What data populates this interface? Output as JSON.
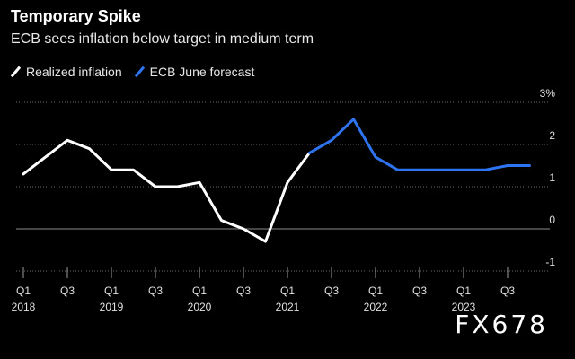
{
  "title": "Temporary Spike",
  "subtitle": "ECB sees inflation below target in medium term",
  "watermark": "FX678",
  "legend": [
    {
      "label": "Realized inflation",
      "color": "#ffffff"
    },
    {
      "label": "ECB June forecast",
      "color": "#2e74f0"
    }
  ],
  "chart_data": {
    "type": "line",
    "title": "Temporary Spike",
    "subtitle": "ECB sees inflation below target in medium term",
    "ylim": [
      -1,
      3
    ],
    "y_ticks": [
      {
        "value": 3,
        "label": "3%"
      },
      {
        "value": 2,
        "label": "2"
      },
      {
        "value": 1,
        "label": "1"
      },
      {
        "value": 0,
        "label": "0"
      },
      {
        "value": -1,
        "label": "-1"
      }
    ],
    "x_ticks": [
      {
        "pos": 0,
        "label": "Q1",
        "year": "2018"
      },
      {
        "pos": 2,
        "label": "Q3",
        "year": ""
      },
      {
        "pos": 4,
        "label": "Q1",
        "year": "2019"
      },
      {
        "pos": 6,
        "label": "Q3",
        "year": ""
      },
      {
        "pos": 8,
        "label": "Q1",
        "year": "2020"
      },
      {
        "pos": 10,
        "label": "Q3",
        "year": ""
      },
      {
        "pos": 12,
        "label": "Q1",
        "year": "2021"
      },
      {
        "pos": 14,
        "label": "Q3",
        "year": ""
      },
      {
        "pos": 16,
        "label": "Q1",
        "year": "2022"
      },
      {
        "pos": 18,
        "label": "Q3",
        "year": ""
      },
      {
        "pos": 20,
        "label": "Q1",
        "year": "2023"
      },
      {
        "pos": 22,
        "label": "Q3",
        "year": ""
      }
    ],
    "x_range": [
      0,
      23
    ],
    "grid": "horizontal dotted",
    "series": [
      {
        "name": "Realized inflation",
        "color": "#ffffff",
        "x": [
          "2018 Q1",
          "2018 Q2",
          "2018 Q3",
          "2018 Q4",
          "2019 Q1",
          "2019 Q2",
          "2019 Q3",
          "2019 Q4",
          "2020 Q1",
          "2020 Q2",
          "2020 Q3",
          "2020 Q4",
          "2021 Q1",
          "2021 Q2"
        ],
        "values": [
          1.3,
          1.7,
          2.1,
          1.9,
          1.4,
          1.4,
          1.0,
          1.0,
          1.1,
          0.2,
          0.0,
          -0.3,
          1.1,
          1.8
        ]
      },
      {
        "name": "ECB June forecast",
        "color": "#2e74f0",
        "x": [
          "2021 Q2",
          "2021 Q3",
          "2021 Q4",
          "2022 Q1",
          "2022 Q2",
          "2022 Q3",
          "2022 Q4",
          "2023 Q1",
          "2023 Q2",
          "2023 Q3",
          "2023 Q4"
        ],
        "values": [
          1.8,
          2.1,
          2.6,
          1.7,
          1.4,
          1.4,
          1.4,
          1.4,
          1.4,
          1.5,
          1.5
        ]
      }
    ]
  }
}
